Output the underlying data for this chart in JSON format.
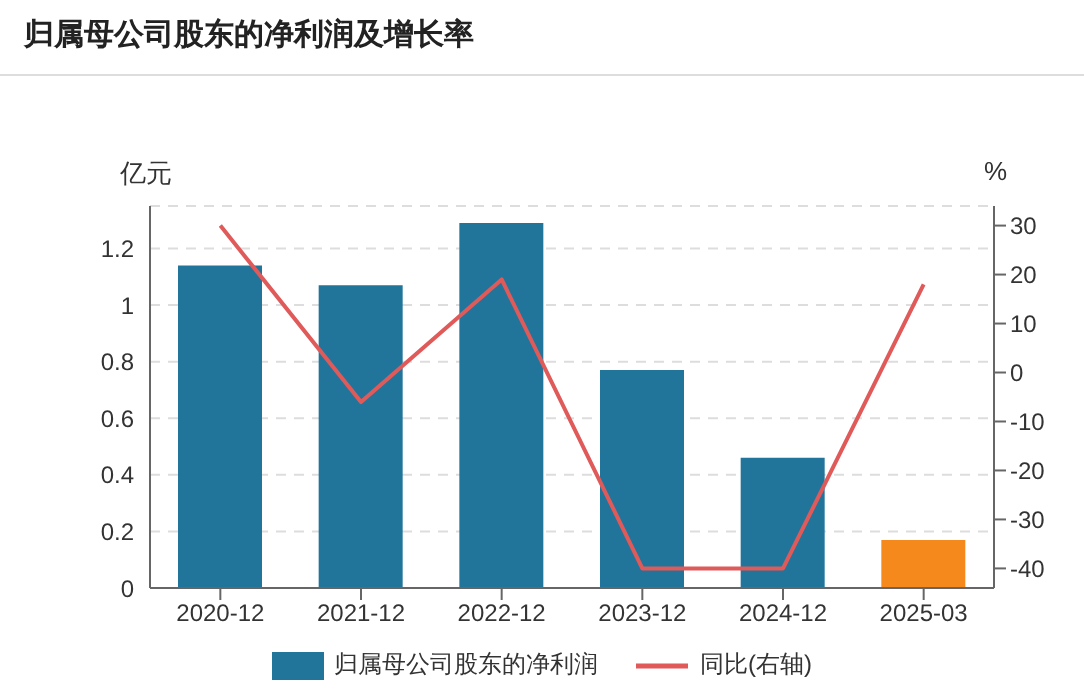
{
  "chart_data": {
    "type": "bar",
    "title": "归属母公司股东的净利润及增长率",
    "categories": [
      "2020-12",
      "2021-12",
      "2022-12",
      "2023-12",
      "2024-12",
      "2025-03"
    ],
    "series": [
      {
        "name": "归属母公司股东的净利润",
        "color": "#21759b",
        "colors": [
          "#21759b",
          "#21759b",
          "#21759b",
          "#21759b",
          "#21759b",
          "#f5891b"
        ],
        "values": [
          1.14,
          1.07,
          1.29,
          0.77,
          0.46,
          0.17
        ]
      },
      {
        "name": "同比(右轴)",
        "type": "line",
        "axis": "y2",
        "color": "#e05a5a",
        "values": [
          30,
          -6,
          19,
          -40,
          -40,
          18
        ]
      }
    ],
    "ylabel": "亿元",
    "y2label": "%",
    "ylim": [
      0,
      1.35
    ],
    "yticks": [
      0,
      0.2,
      0.4,
      0.6,
      0.8,
      1,
      1.2
    ],
    "y2lim": [
      -44,
      34
    ],
    "y2ticks": [
      -40,
      -30,
      -20,
      -10,
      0,
      10,
      20,
      30
    ],
    "grid": "y",
    "legend": "bottom",
    "marker": "none"
  }
}
